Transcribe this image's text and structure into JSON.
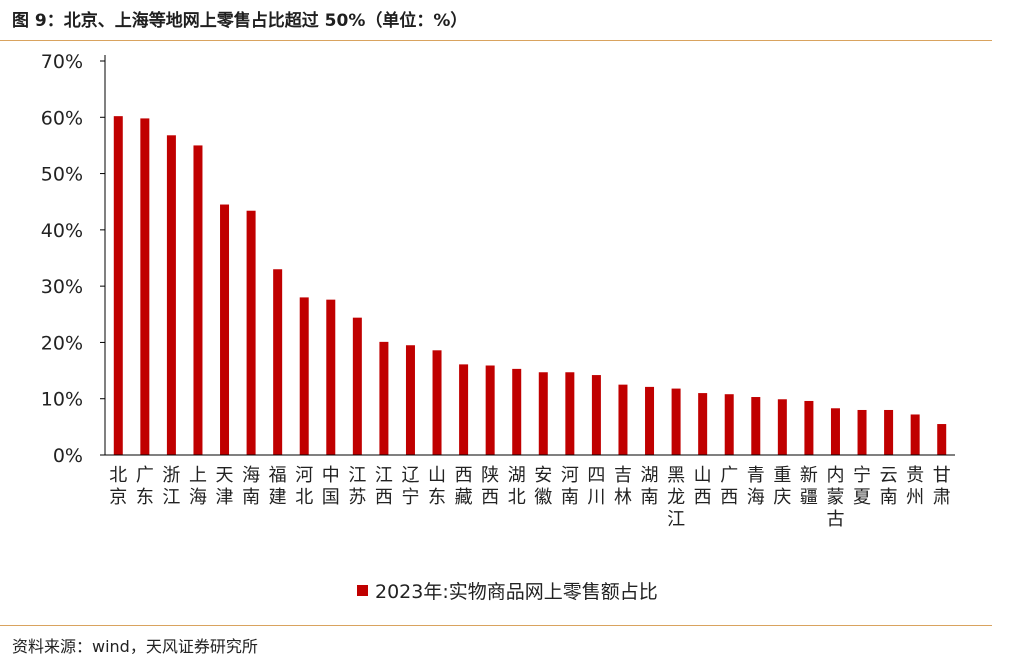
{
  "figure": {
    "title": "图 9：北京、上海等地网上零售占比超过 50%（单位：%）",
    "source": "资料来源：wind，天风证券研究所"
  },
  "colors": {
    "bar": "#c00000",
    "axis": "#000000",
    "rule": "#d9a35f"
  },
  "chart_data": {
    "type": "bar",
    "categories": [
      "北京",
      "广东",
      "浙江",
      "上海",
      "天津",
      "海南",
      "福建",
      "河北",
      "中国",
      "江苏",
      "江西",
      "辽宁",
      "山东",
      "西藏",
      "陕西",
      "湖北",
      "安徽",
      "河南",
      "四川",
      "吉林",
      "湖南",
      "黑龙江",
      "山西",
      "广西",
      "青海",
      "重庆",
      "新疆",
      "内蒙古",
      "宁夏",
      "云南",
      "贵州",
      "甘肃"
    ],
    "series": [
      {
        "name": "2023年:实物商品网上零售额占比",
        "values": [
          60.2,
          59.8,
          56.8,
          55.0,
          44.5,
          43.4,
          33.0,
          28.0,
          27.6,
          24.4,
          20.1,
          19.5,
          18.6,
          16.1,
          15.9,
          15.3,
          14.7,
          14.7,
          14.2,
          12.5,
          12.1,
          11.8,
          11.0,
          10.8,
          10.3,
          9.9,
          9.6,
          8.3,
          8.0,
          8.0,
          7.2,
          5.5
        ]
      }
    ],
    "ylim": [
      0,
      70
    ],
    "yticks": [
      "0%",
      "10%",
      "20%",
      "30%",
      "40%",
      "50%",
      "60%",
      "70%"
    ],
    "ytick_values": [
      0,
      10,
      20,
      30,
      40,
      50,
      60,
      70
    ],
    "legend_position": "bottom",
    "grid": false
  }
}
